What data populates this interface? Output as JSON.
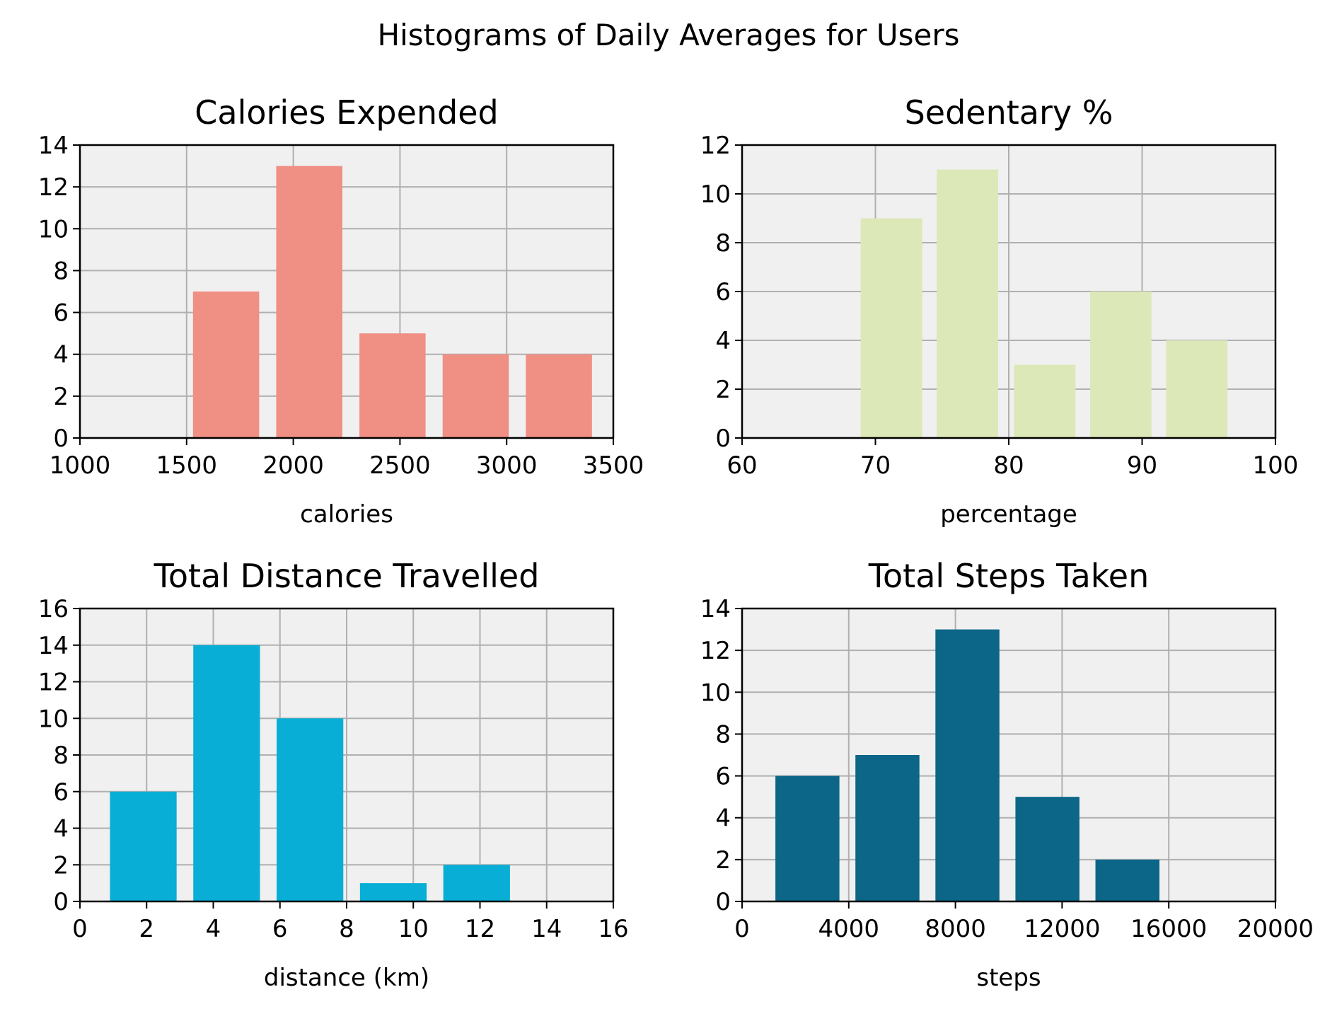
{
  "figure": {
    "suptitle": "Histograms of Daily Averages for Users"
  },
  "chart_data": [
    {
      "type": "bar",
      "title": "Calories Expended",
      "xlabel": "calories",
      "ylabel": "",
      "xlim": [
        1000,
        3500
      ],
      "ylim": [
        0,
        14
      ],
      "xticks": [
        1000,
        1500,
        2000,
        2500,
        3000,
        3500
      ],
      "yticks": [
        0,
        2,
        4,
        6,
        8,
        10,
        12,
        14
      ],
      "grid": true,
      "bar_color": "#f08f84",
      "bins": [
        {
          "start": 1530,
          "end": 1840,
          "count": 7
        },
        {
          "start": 1920,
          "end": 2230,
          "count": 13
        },
        {
          "start": 2310,
          "end": 2620,
          "count": 5
        },
        {
          "start": 2700,
          "end": 3010,
          "count": 4
        },
        {
          "start": 3090,
          "end": 3400,
          "count": 4
        }
      ]
    },
    {
      "type": "bar",
      "title": "Sedentary %",
      "xlabel": "percentage",
      "ylabel": "",
      "xlim": [
        60,
        100
      ],
      "ylim": [
        0,
        12
      ],
      "xticks": [
        60,
        70,
        80,
        90,
        100
      ],
      "yticks": [
        0,
        2,
        4,
        6,
        8,
        10,
        12
      ],
      "grid": true,
      "bar_color": "#dce8b7",
      "bins": [
        {
          "start": 68.9,
          "end": 73.5,
          "count": 9
        },
        {
          "start": 74.6,
          "end": 79.2,
          "count": 11
        },
        {
          "start": 80.4,
          "end": 85.0,
          "count": 3
        },
        {
          "start": 86.1,
          "end": 90.7,
          "count": 6
        },
        {
          "start": 91.8,
          "end": 96.4,
          "count": 4
        }
      ]
    },
    {
      "type": "bar",
      "title": "Total Distance Travelled",
      "xlabel": "distance (km)",
      "ylabel": "",
      "xlim": [
        0,
        16
      ],
      "ylim": [
        0,
        16
      ],
      "xticks": [
        0,
        2,
        4,
        6,
        8,
        10,
        12,
        14,
        16
      ],
      "yticks": [
        0,
        2,
        4,
        6,
        8,
        10,
        12,
        14,
        16
      ],
      "grid": true,
      "bar_color": "#08aed5",
      "bins": [
        {
          "start": 0.9,
          "end": 2.9,
          "count": 6
        },
        {
          "start": 3.4,
          "end": 5.4,
          "count": 14
        },
        {
          "start": 5.9,
          "end": 7.9,
          "count": 10
        },
        {
          "start": 8.4,
          "end": 10.4,
          "count": 1
        },
        {
          "start": 10.9,
          "end": 12.9,
          "count": 2
        }
      ]
    },
    {
      "type": "bar",
      "title": "Total Steps Taken",
      "xlabel": "steps",
      "ylabel": "",
      "xlim": [
        0,
        20000
      ],
      "ylim": [
        0,
        14
      ],
      "xticks": [
        0,
        4000,
        8000,
        12000,
        16000,
        20000
      ],
      "yticks": [
        0,
        2,
        4,
        6,
        8,
        10,
        12,
        14
      ],
      "grid": true,
      "bar_color": "#0b6688",
      "bins": [
        {
          "start": 1250,
          "end": 3650,
          "count": 6
        },
        {
          "start": 4250,
          "end": 6650,
          "count": 7
        },
        {
          "start": 7250,
          "end": 9650,
          "count": 13
        },
        {
          "start": 10250,
          "end": 12650,
          "count": 5
        },
        {
          "start": 13250,
          "end": 15650,
          "count": 2
        }
      ]
    }
  ]
}
